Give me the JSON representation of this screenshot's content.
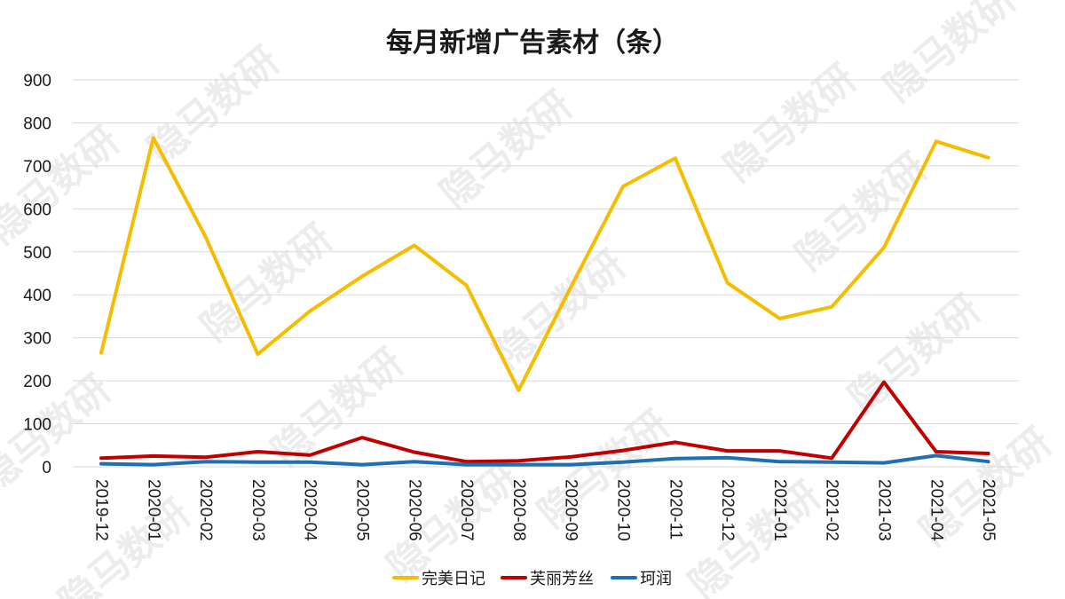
{
  "chart_data": {
    "type": "line",
    "title": "每月新增广告素材（条）",
    "categories": [
      "2019-12",
      "2020-01",
      "2020-02",
      "2020-03",
      "2020-04",
      "2020-05",
      "2020-06",
      "2020-07",
      "2020-08",
      "2020-09",
      "2020-10",
      "2020-11",
      "2020-12",
      "2021-01",
      "2021-02",
      "2021-03",
      "2021-04",
      "2021-05"
    ],
    "ylim": [
      0,
      900
    ],
    "yticks": [
      0,
      100,
      200,
      300,
      400,
      500,
      600,
      700,
      800,
      900
    ],
    "grid": true,
    "legend_position": "bottom",
    "series": [
      {
        "name": "完美日记",
        "color": "#F5BC00",
        "values": [
          265,
          765,
          535,
          262,
          362,
          443,
          515,
          422,
          178,
          418,
          652,
          718,
          428,
          345,
          372,
          510,
          757,
          719
        ]
      },
      {
        "name": "芙丽芳丝",
        "color": "#C00000",
        "values": [
          20,
          25,
          22,
          35,
          27,
          68,
          34,
          12,
          14,
          23,
          38,
          57,
          37,
          37,
          20,
          197,
          35,
          31
        ]
      },
      {
        "name": "珂润",
        "color": "#1F6FB5",
        "values": [
          7,
          5,
          12,
          11,
          11,
          5,
          12,
          5,
          5,
          5,
          11,
          19,
          21,
          12,
          11,
          9,
          26,
          12
        ]
      }
    ]
  },
  "watermark": "隐马数研"
}
